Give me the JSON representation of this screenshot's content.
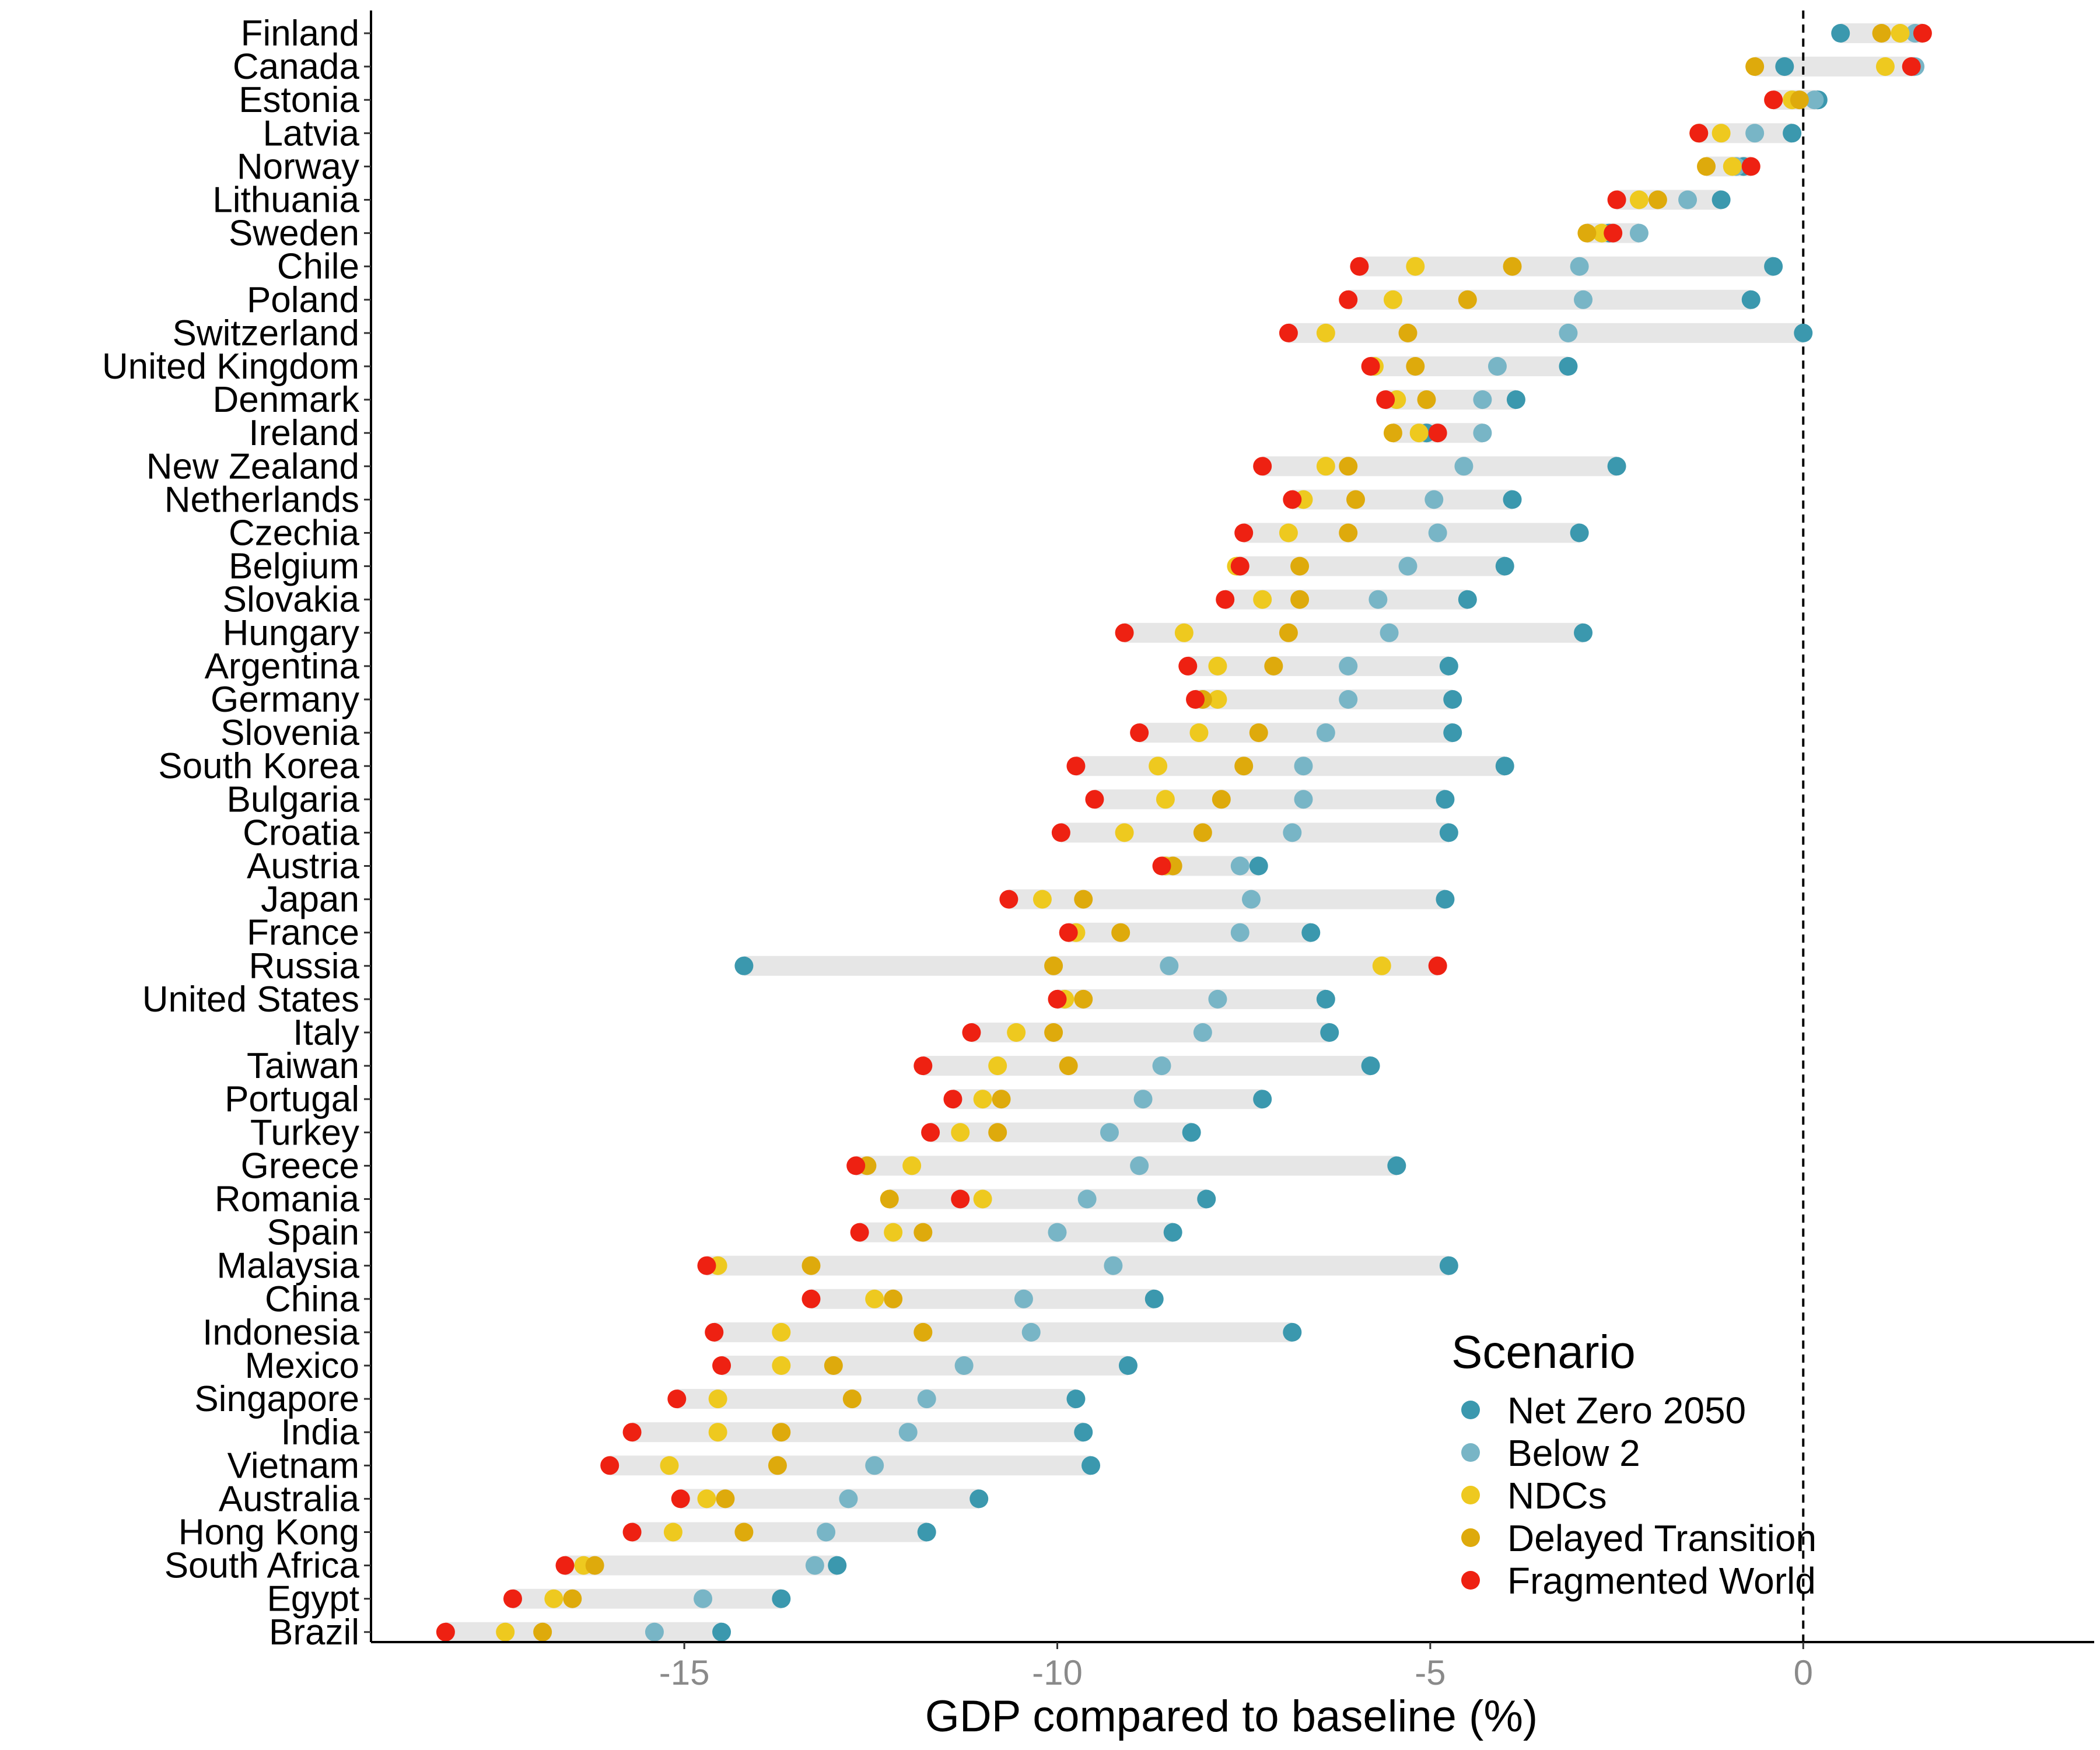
{
  "chart_data": {
    "type": "scatter",
    "title": "",
    "xlabel": "GDP compared to baseline (%)",
    "ylabel": "",
    "xlim": [
      -19.2,
      3.9
    ],
    "xticks": [
      -15,
      -10,
      -5,
      0
    ],
    "xtick_labels": [
      "-15",
      "-10",
      "-5",
      "0"
    ],
    "reference_line": {
      "x": 0,
      "style": "dashed"
    },
    "grid": false,
    "legend": {
      "title": "Scenario",
      "placement": "bottom-right",
      "entries": [
        {
          "name": "Net Zero 2050",
          "color": "#3b98ae"
        },
        {
          "name": "Below 2",
          "color": "#78b5c6"
        },
        {
          "name": "NDCs",
          "color": "#eec91f"
        },
        {
          "name": "Delayed Transition",
          "color": "#deaa0c"
        },
        {
          "name": "Fragmented World",
          "color": "#ee2112"
        }
      ]
    },
    "range_bar_color": "#e6e6e6",
    "countries": [
      "Finland",
      "Canada",
      "Estonia",
      "Latvia",
      "Norway",
      "Lithuania",
      "Sweden",
      "Chile",
      "Poland",
      "Switzerland",
      "United Kingdom",
      "Denmark",
      "Ireland",
      "New Zealand",
      "Netherlands",
      "Czechia",
      "Belgium",
      "Slovakia",
      "Hungary",
      "Argentina",
      "Germany",
      "Slovenia",
      "South Korea",
      "Bulgaria",
      "Croatia",
      "Austria",
      "Japan",
      "France",
      "Russia",
      "United States",
      "Italy",
      "Taiwan",
      "Portugal",
      "Turkey",
      "Greece",
      "Romania",
      "Spain",
      "Malaysia",
      "China",
      "Indonesia",
      "Mexico",
      "Singapore",
      "India",
      "Vietnam",
      "Australia",
      "Hong Kong",
      "South Africa",
      "Egypt",
      "Brazil"
    ],
    "series": [
      {
        "name": "Net Zero 2050",
        "color": "#3b98ae",
        "values": [
          0.5,
          -0.25,
          0.2,
          -0.15,
          -0.8,
          -1.1,
          -2.6,
          -0.4,
          -0.7,
          0.0,
          -3.15,
          -3.85,
          -5.05,
          -2.5,
          -3.9,
          -3.0,
          -4.0,
          -4.5,
          -2.95,
          -4.75,
          -4.7,
          -4.7,
          -4.0,
          -4.8,
          -4.75,
          -7.3,
          -4.8,
          -6.6,
          -14.2,
          -6.4,
          -6.35,
          -5.8,
          -7.25,
          -8.2,
          -5.45,
          -8.0,
          -8.45,
          -4.75,
          -8.7,
          -6.85,
          -9.05,
          -9.75,
          -9.65,
          -9.55,
          -11.05,
          -11.75,
          -12.95,
          -13.7,
          -14.5
        ]
      },
      {
        "name": "Below 2",
        "color": "#78b5c6",
        "values": [
          1.5,
          1.5,
          0.15,
          -0.65,
          -0.9,
          -1.55,
          -2.2,
          -3.0,
          -2.95,
          -3.15,
          -4.1,
          -4.3,
          -4.3,
          -4.55,
          -4.95,
          -4.9,
          -5.3,
          -5.7,
          -5.55,
          -6.1,
          -6.1,
          -6.4,
          -6.7,
          -6.7,
          -6.85,
          -7.55,
          -7.4,
          -7.55,
          -8.5,
          -7.85,
          -8.05,
          -8.6,
          -8.85,
          -9.3,
          -8.9,
          -9.6,
          -10.0,
          -9.25,
          -10.45,
          -10.35,
          -11.25,
          -11.75,
          -12.0,
          -12.45,
          -12.8,
          -13.1,
          -13.25,
          -14.75,
          -15.4
        ]
      },
      {
        "name": "NDCs",
        "color": "#eec91f",
        "values": [
          1.3,
          1.1,
          -0.15,
          -1.1,
          -0.95,
          -2.2,
          -2.7,
          -5.2,
          -5.5,
          -6.4,
          -5.75,
          -5.45,
          -5.15,
          -6.4,
          -6.7,
          -6.9,
          -7.6,
          -7.25,
          -8.3,
          -7.85,
          -7.85,
          -8.1,
          -8.65,
          -8.55,
          -9.1,
          -8.55,
          -10.2,
          -9.75,
          -5.65,
          -9.9,
          -10.55,
          -10.8,
          -11.0,
          -11.3,
          -11.95,
          -11.0,
          -12.2,
          -14.55,
          -12.45,
          -13.7,
          -13.7,
          -14.55,
          -14.55,
          -15.2,
          -14.7,
          -15.15,
          -16.35,
          -16.75,
          -17.4
        ]
      },
      {
        "name": "Delayed Transition",
        "color": "#deaa0c",
        "values": [
          1.05,
          -0.65,
          -0.05,
          -1.4,
          -1.3,
          -1.95,
          -2.9,
          -3.9,
          -4.5,
          -5.3,
          -5.2,
          -5.05,
          -5.5,
          -6.1,
          -6.0,
          -6.1,
          -6.75,
          -6.75,
          -6.9,
          -7.1,
          -8.05,
          -7.3,
          -7.5,
          -7.8,
          -8.05,
          -8.45,
          -9.65,
          -9.15,
          -10.05,
          -9.65,
          -10.05,
          -9.85,
          -10.75,
          -10.8,
          -12.55,
          -12.25,
          -11.8,
          -13.3,
          -12.2,
          -11.8,
          -13.0,
          -12.75,
          -13.7,
          -13.75,
          -14.45,
          -14.2,
          -16.2,
          -16.5,
          -16.9
        ]
      },
      {
        "name": "Fragmented World",
        "color": "#ee2112",
        "values": [
          1.6,
          1.45,
          -0.4,
          -1.4,
          -0.7,
          -2.5,
          -2.55,
          -5.95,
          -6.1,
          -6.9,
          -5.8,
          -5.6,
          -4.9,
          -7.25,
          -6.85,
          -7.5,
          -7.55,
          -7.75,
          -9.1,
          -8.25,
          -8.15,
          -8.9,
          -9.75,
          -9.5,
          -9.95,
          -8.6,
          -10.65,
          -9.85,
          -4.9,
          -10.0,
          -11.15,
          -11.8,
          -11.4,
          -11.7,
          -12.7,
          -11.3,
          -12.65,
          -14.7,
          -13.3,
          -14.6,
          -14.5,
          -15.1,
          -15.7,
          -16.0,
          -15.05,
          -15.7,
          -16.6,
          -17.3,
          -18.2
        ]
      }
    ]
  }
}
